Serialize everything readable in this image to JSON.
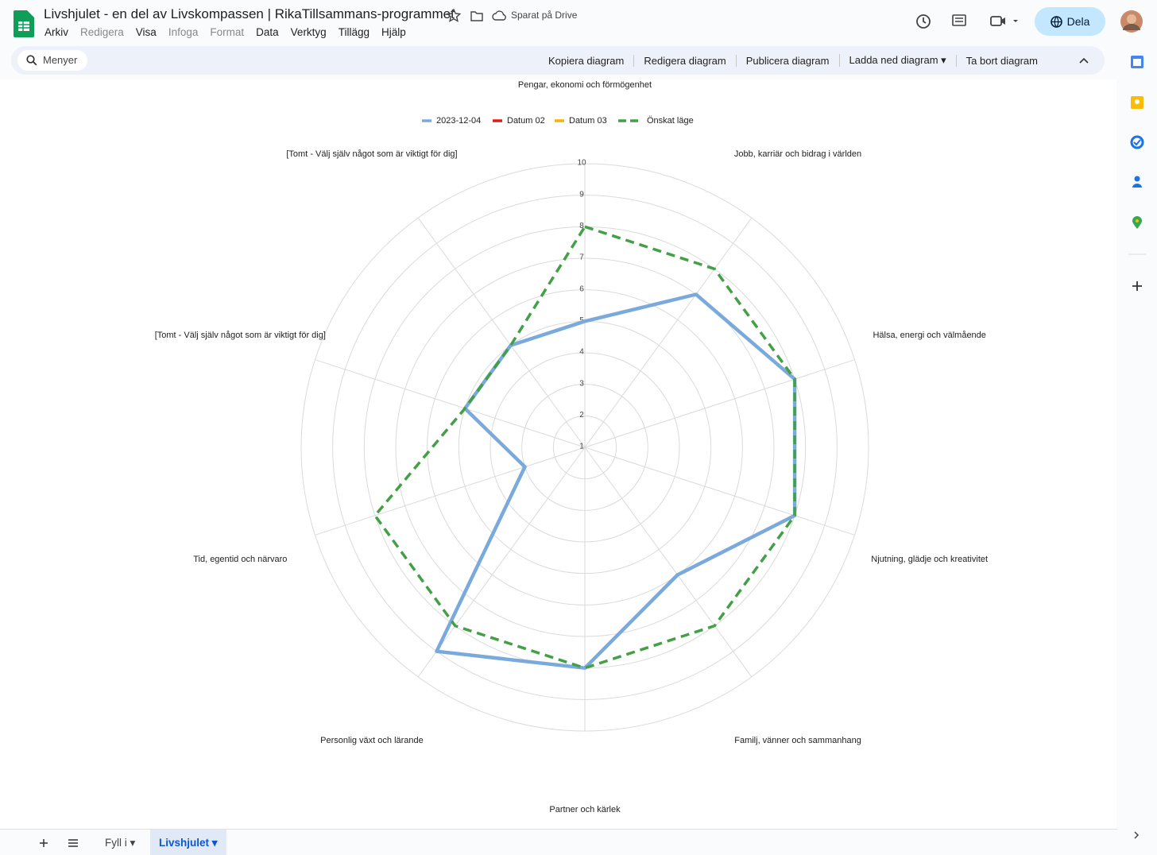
{
  "header": {
    "title": "Livshjulet - en del av Livskompassen | RikaTillsammans-programmet",
    "saved": "Sparat på Drive",
    "share": "Dela",
    "menus": [
      "Arkiv",
      "Redigera",
      "Visa",
      "Infoga",
      "Format",
      "Data",
      "Verktyg",
      "Tillägg",
      "Hjälp"
    ]
  },
  "toolbar": {
    "search": "Menyer",
    "buttons": [
      "Kopiera diagram",
      "Redigera diagram",
      "Publicera diagram",
      "Ladda ned diagram",
      "Ta bort diagram"
    ]
  },
  "sheets": [
    "Fyll i",
    "Livshjulet"
  ],
  "chart_data": {
    "type": "radar",
    "categories": [
      "Pengar, ekonomi och förmögenhet",
      "Jobb, karriär och bidrag i världen",
      "Hälsa, energi och välmående",
      "Njutning, glädje och kreativitet",
      "Familj, vänner och sammanhang",
      "Partner och kärlek",
      "Personlig växt och lärande",
      "Tid, egentid och närvaro",
      "[Tomt - Välj själv något som är viktigt för dig]",
      "[Tomt - Välj själv något som är viktigt för dig]"
    ],
    "series": [
      {
        "name": "2023-12-04",
        "color": "#7aaadc",
        "values": [
          5,
          7,
          8,
          8,
          6,
          8,
          9,
          3,
          5,
          5
        ]
      },
      {
        "name": "Datum 02",
        "color": "#e01b1b",
        "values": [
          null,
          null,
          null,
          null,
          null,
          null,
          null,
          null,
          null,
          null
        ]
      },
      {
        "name": "Datum 03",
        "color": "#f4b400",
        "values": [
          null,
          null,
          null,
          null,
          null,
          null,
          null,
          null,
          null,
          null
        ]
      },
      {
        "name": "Önskat läge",
        "color": "#43a047",
        "dashed": true,
        "values": [
          8,
          8,
          8,
          8,
          8,
          8,
          8,
          8,
          5,
          5
        ]
      }
    ],
    "ylim": [
      1,
      10
    ],
    "yticks": [
      1,
      2,
      3,
      4,
      5,
      6,
      7,
      8,
      9,
      10
    ],
    "grid": true,
    "legend": "top"
  }
}
